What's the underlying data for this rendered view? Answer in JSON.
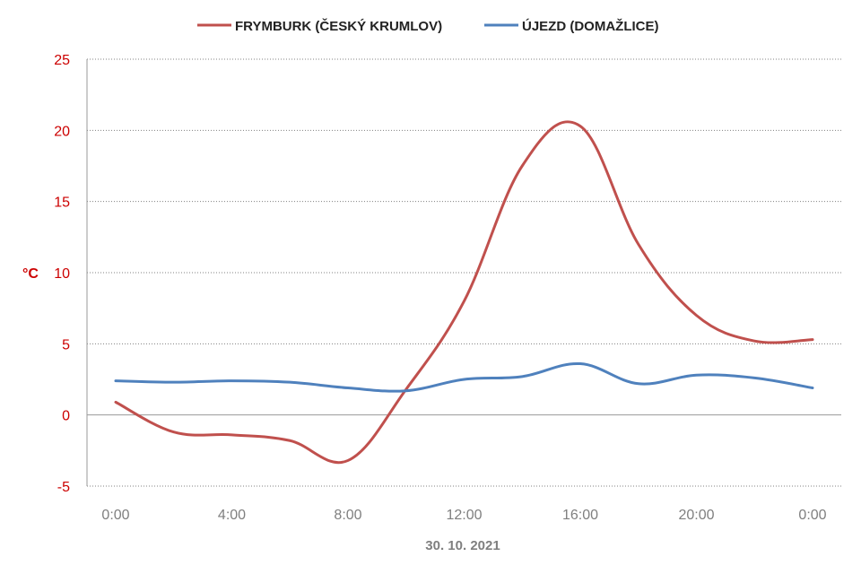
{
  "chart_data": {
    "type": "line",
    "xlabel": "30. 10. 2021",
    "ylabel": "°C",
    "ylim": [
      -5,
      25
    ],
    "yticks": [
      -5,
      0,
      5,
      10,
      15,
      20,
      25
    ],
    "xticks": [
      0,
      4,
      8,
      12,
      16,
      20,
      24
    ],
    "xtick_labels": [
      "0:00",
      "4:00",
      "8:00",
      "12:00",
      "16:00",
      "20:00",
      "0:00"
    ],
    "xlim": [
      0,
      24
    ],
    "grid": "horizontal dotted",
    "legend": "top",
    "series": [
      {
        "name": "FRYMBURK (ČESKÝ KRUMLOV)",
        "color": "#c0504d",
        "x": [
          0,
          2,
          4,
          6,
          8,
          10,
          12,
          14,
          16,
          18,
          20,
          22,
          24
        ],
        "values": [
          0.9,
          -1.2,
          -1.4,
          -1.8,
          -3.2,
          1.8,
          8.0,
          17.5,
          20.3,
          12.0,
          7.0,
          5.2,
          5.3
        ]
      },
      {
        "name": "ÚJEZD (DOMAŽLICE)",
        "color": "#4f81bd",
        "x": [
          0,
          2,
          4,
          6,
          8,
          10,
          12,
          14,
          16,
          18,
          20,
          22,
          24
        ],
        "values": [
          2.4,
          2.3,
          2.4,
          2.3,
          1.9,
          1.7,
          2.5,
          2.7,
          3.6,
          2.2,
          2.8,
          2.6,
          1.9
        ]
      }
    ]
  }
}
